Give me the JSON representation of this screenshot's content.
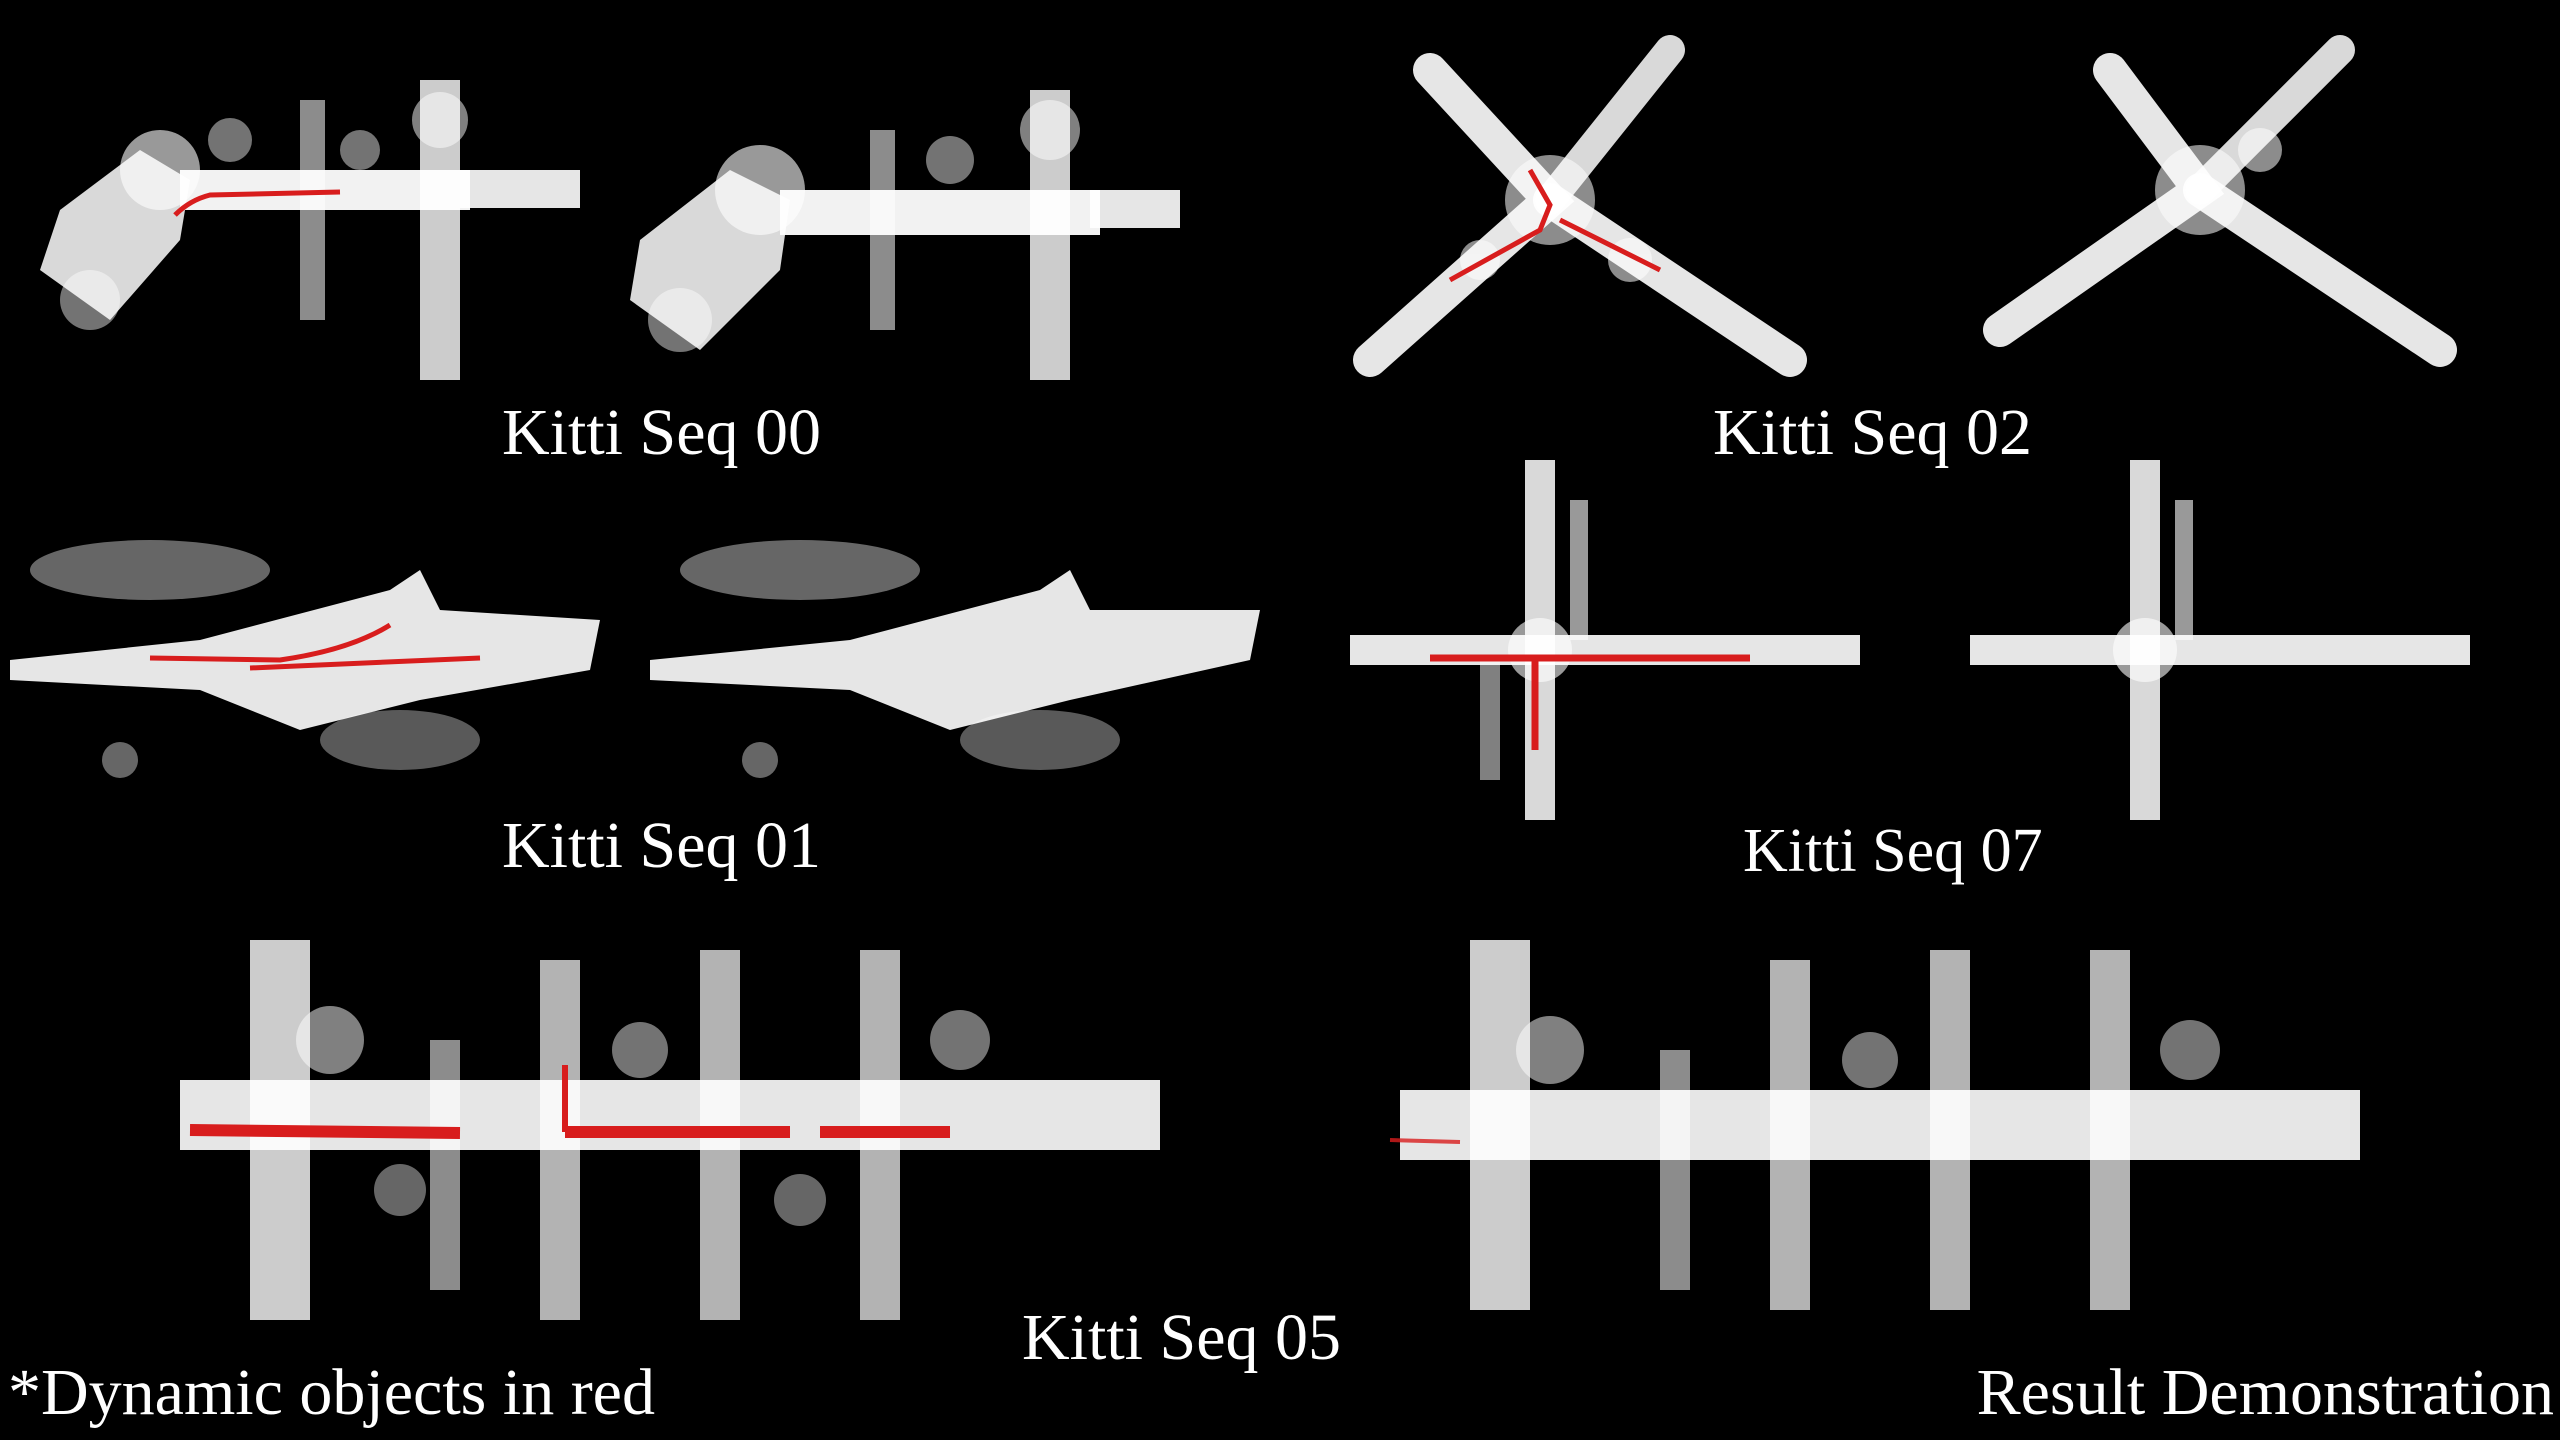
{
  "colors": {
    "background": "#000000",
    "map_points": "#ffffff",
    "dynamic_objects": "#d81d1d",
    "text": "#ffffff"
  },
  "captions": {
    "seq00": "Kitti Seq 00",
    "seq01": "Kitti Seq 01",
    "seq02": "Kitti Seq 02",
    "seq07": "Kitti Seq 07",
    "seq05": "Kitti Seq 05"
  },
  "footer": {
    "note": "*Dynamic objects in red",
    "title": "Result Demonstration"
  }
}
